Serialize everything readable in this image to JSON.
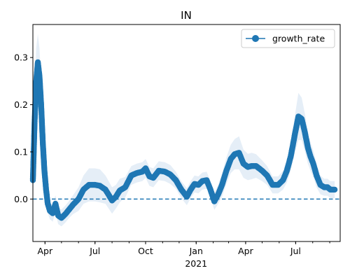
{
  "chart_data": {
    "type": "line",
    "title": "IN",
    "xlabel": "",
    "ylabel": "",
    "x_range": [
      "2020-03-10",
      "2021-09-20"
    ],
    "ylim": [
      -0.09,
      0.37
    ],
    "yticks": [
      0.0,
      0.1,
      0.2,
      0.3
    ],
    "ytick_labels": [
      "0.0",
      "0.1",
      "0.2",
      "0.3"
    ],
    "xticks": [
      {
        "date": "2020-04-01",
        "label": "Apr"
      },
      {
        "date": "2020-07-01",
        "label": "Jul"
      },
      {
        "date": "2020-10-01",
        "label": "Oct"
      },
      {
        "date": "2021-01-01",
        "label": "Jan"
      },
      {
        "date": "2021-04-01",
        "label": "Apr"
      },
      {
        "date": "2021-07-01",
        "label": "Jul"
      }
    ],
    "year_label": "2021",
    "grid": false,
    "legend": {
      "location": "upper right",
      "entries": [
        "growth_rate"
      ]
    },
    "colors": {
      "series": "#1f77b4",
      "band": "#dce8f4",
      "reference": "#1f77b4"
    },
    "reference_line": {
      "y": 0.0,
      "style": "dashed"
    },
    "series": [
      {
        "name": "growth_rate",
        "marker": "circle",
        "x": [
          "2020-03-10",
          "2020-03-13",
          "2020-03-16",
          "2020-03-19",
          "2020-03-22",
          "2020-03-25",
          "2020-03-28",
          "2020-03-31",
          "2020-04-03",
          "2020-04-06",
          "2020-04-10",
          "2020-04-15",
          "2020-04-20",
          "2020-04-25",
          "2020-05-01",
          "2020-05-08",
          "2020-05-15",
          "2020-05-22",
          "2020-06-01",
          "2020-06-10",
          "2020-06-20",
          "2020-07-01",
          "2020-07-10",
          "2020-07-20",
          "2020-08-01",
          "2020-08-08",
          "2020-08-15",
          "2020-08-25",
          "2020-09-05",
          "2020-09-15",
          "2020-09-25",
          "2020-10-01",
          "2020-10-08",
          "2020-10-15",
          "2020-10-25",
          "2020-11-05",
          "2020-11-15",
          "2020-11-25",
          "2020-12-05",
          "2020-12-15",
          "2020-12-22",
          "2020-12-29",
          "2021-01-05",
          "2021-01-12",
          "2021-01-20",
          "2021-01-27",
          "2021-02-03",
          "2021-02-10",
          "2021-02-17",
          "2021-02-25",
          "2021-03-05",
          "2021-03-12",
          "2021-03-20",
          "2021-03-28",
          "2021-04-05",
          "2021-04-12",
          "2021-04-20",
          "2021-05-01",
          "2021-05-10",
          "2021-05-20",
          "2021-05-30",
          "2021-06-08",
          "2021-06-15",
          "2021-06-22",
          "2021-06-30",
          "2021-07-06",
          "2021-07-12",
          "2021-07-18",
          "2021-07-23",
          "2021-07-28",
          "2021-08-02",
          "2021-08-08",
          "2021-08-15",
          "2021-08-22",
          "2021-08-28",
          "2021-09-02",
          "2021-09-06",
          "2021-09-10"
        ],
        "values": [
          0.04,
          0.16,
          0.25,
          0.29,
          0.26,
          0.2,
          0.12,
          0.06,
          0.02,
          -0.01,
          -0.025,
          -0.03,
          -0.01,
          -0.035,
          -0.04,
          -0.032,
          -0.022,
          -0.012,
          0.0,
          0.02,
          0.03,
          0.03,
          0.028,
          0.02,
          -0.003,
          0.005,
          0.018,
          0.025,
          0.05,
          0.055,
          0.058,
          0.065,
          0.048,
          0.045,
          0.06,
          0.058,
          0.052,
          0.04,
          0.02,
          0.005,
          0.02,
          0.032,
          0.03,
          0.038,
          0.04,
          0.02,
          -0.005,
          0.01,
          0.03,
          0.06,
          0.085,
          0.095,
          0.098,
          0.075,
          0.068,
          0.07,
          0.07,
          0.06,
          0.05,
          0.03,
          0.03,
          0.04,
          0.06,
          0.09,
          0.14,
          0.175,
          0.17,
          0.14,
          0.11,
          0.09,
          0.075,
          0.05,
          0.03,
          0.025,
          0.025,
          0.02,
          0.02,
          0.02
        ],
        "band_halfwidth": [
          0.05,
          0.06,
          0.07,
          0.06,
          0.06,
          0.05,
          0.04,
          0.03,
          0.025,
          0.02,
          0.018,
          0.018,
          0.018,
          0.018,
          0.018,
          0.018,
          0.018,
          0.02,
          0.025,
          0.03,
          0.035,
          0.035,
          0.035,
          0.03,
          0.028,
          0.025,
          0.025,
          0.022,
          0.02,
          0.02,
          0.02,
          0.02,
          0.02,
          0.02,
          0.02,
          0.02,
          0.02,
          0.018,
          0.018,
          0.018,
          0.018,
          0.018,
          0.018,
          0.018,
          0.018,
          0.018,
          0.018,
          0.02,
          0.025,
          0.028,
          0.03,
          0.032,
          0.035,
          0.03,
          0.028,
          0.028,
          0.025,
          0.022,
          0.02,
          0.018,
          0.018,
          0.02,
          0.025,
          0.03,
          0.04,
          0.05,
          0.045,
          0.04,
          0.035,
          0.03,
          0.028,
          0.025,
          0.02,
          0.018,
          0.018,
          0.018,
          0.018,
          0.018
        ]
      }
    ]
  }
}
